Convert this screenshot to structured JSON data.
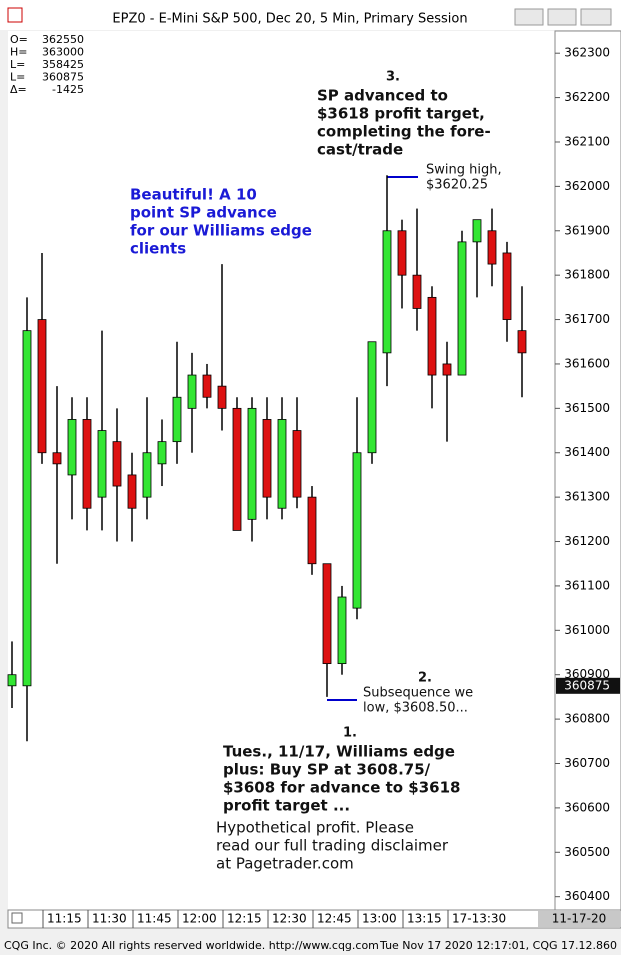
{
  "chart_data": {
    "type": "candlestick",
    "title": "EPZ0 - E-Mini S&P 500, Dec 20, 5 Min, Primary Session",
    "categories": [
      null,
      null,
      "11:15",
      null,
      null,
      "11:30",
      null,
      null,
      "11:45",
      null,
      null,
      "12:00",
      null,
      null,
      "12:15",
      null,
      null,
      "12:30",
      null,
      null,
      "12:45",
      null,
      null,
      "13:00",
      null,
      null,
      "13:15",
      null,
      null,
      "17-13:30",
      null,
      null,
      null,
      null,
      null
    ],
    "open": [
      360875,
      360875,
      361700,
      361400,
      361350,
      361475,
      361300,
      361425,
      361350,
      361300,
      361375,
      361425,
      361500,
      361575,
      361550,
      361500,
      361250,
      361475,
      361275,
      361450,
      361300,
      361150,
      360925,
      361050,
      361400,
      361625,
      361900,
      361800,
      361750,
      361600,
      361575,
      361875,
      361900,
      361850,
      361675
    ],
    "high": [
      360975,
      361750,
      361850,
      361550,
      361525,
      361525,
      361675,
      361500,
      361400,
      361525,
      361475,
      361650,
      361625,
      361600,
      361825,
      361525,
      361525,
      361525,
      361525,
      361525,
      361325,
      361150,
      361100,
      361525,
      361650,
      362025,
      361925,
      361950,
      361775,
      361650,
      361900,
      361925,
      361950,
      361875,
      361775
    ],
    "low": [
      360825,
      360750,
      361375,
      361150,
      361250,
      361225,
      361225,
      361200,
      361200,
      361250,
      361325,
      361375,
      361400,
      361500,
      361450,
      361225,
      361200,
      361250,
      361250,
      361275,
      361125,
      360850,
      360900,
      361025,
      361375,
      361550,
      361725,
      361675,
      361500,
      361425,
      361575,
      361750,
      361775,
      361650,
      361525
    ],
    "close": [
      360900,
      361675,
      361400,
      361375,
      361475,
      361275,
      361450,
      361325,
      361275,
      361400,
      361425,
      361525,
      361575,
      361525,
      361500,
      361225,
      361500,
      361300,
      361475,
      361300,
      361150,
      360925,
      361075,
      361400,
      361650,
      361900,
      361800,
      361725,
      361575,
      361575,
      361875,
      361925,
      361825,
      361700,
      361625
    ],
    "up_color": "#33e633",
    "down_color": "#dd1111",
    "ylim": [
      360370,
      362350
    ],
    "yticks": [
      360400,
      360500,
      360600,
      360700,
      360800,
      360900,
      361000,
      361100,
      361200,
      361300,
      361400,
      361500,
      361600,
      361700,
      361800,
      361900,
      362000,
      362100,
      362200,
      362300
    ],
    "last_price": 360875,
    "date_label": "11-17-20",
    "stats": [
      {
        "label": "O=",
        "value": 362550
      },
      {
        "label": "H=",
        "value": 363000
      },
      {
        "label": "L=",
        "value": 358425
      },
      {
        "label": "L=",
        "value": 360875
      },
      {
        "label": "Δ=",
        "value": -1425
      }
    ],
    "annotations": [
      {
        "number": "3.",
        "lines": [
          "SP advanced to",
          "$3618 profit target,",
          "completing the fore-",
          "cast/trade"
        ]
      },
      {
        "lines": [
          "Swing high,",
          "$3620.25"
        ]
      },
      {
        "lines": [
          "Beautiful! A 10",
          "point SP advance",
          "for our Williams edge",
          "clients"
        ]
      },
      {
        "number": "2.",
        "lines": [
          "Subsequence we",
          "low, $3608.50..."
        ]
      },
      {
        "number": "1.",
        "lines": [
          "Tues., 11/17, Williams edge",
          "plus: Buy SP at 3608.75/",
          "$3608 for advance to $3618",
          "profit target ..."
        ]
      },
      {
        "lines": [
          "Hypothetical profit. Please",
          "read our full trading disclaimer",
          "at Pagetrader.com"
        ]
      }
    ],
    "footer_left": "CQG Inc. © 2020 All rights reserved worldwide. http://www.cqg.com",
    "footer_right": "Tue Nov 17 2020 12:17:01, CQG 17.12.860"
  }
}
